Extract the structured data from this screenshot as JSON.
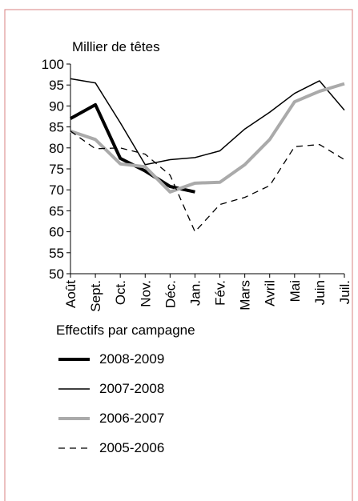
{
  "chart_data": {
    "type": "line",
    "ylabel": "Millier de têtes",
    "categories": [
      "Août",
      "Sept.",
      "Oct.",
      "Nov.",
      "Déc.",
      "Jan.",
      "Fév.",
      "Mars",
      "Avril",
      "Mai",
      "Juin",
      "Juil."
    ],
    "ylim": [
      50,
      100
    ],
    "yticks": [
      50,
      55,
      60,
      65,
      70,
      75,
      80,
      85,
      90,
      95,
      100
    ],
    "legend_title": "Effectifs par campagne",
    "series": [
      {
        "name": "2008-2009",
        "color": "#000000",
        "line_width": 4,
        "dashed": false,
        "values": [
          87,
          90.3,
          77.5,
          74.5,
          70.8,
          69.5,
          null,
          null,
          null,
          null,
          null,
          null
        ]
      },
      {
        "name": "2007-2008",
        "color": "#000000",
        "line_width": 1.5,
        "dashed": false,
        "values": [
          96.5,
          95.5,
          86,
          76,
          77.2,
          77.7,
          79.3,
          84.5,
          88.5,
          93,
          96,
          89
        ]
      },
      {
        "name": "2006-2007",
        "color": "#aaaaaa",
        "line_width": 4,
        "dashed": false,
        "values": [
          84,
          82,
          76.2,
          75.5,
          69.5,
          71.6,
          71.8,
          76,
          82,
          91,
          93.5,
          95.3
        ]
      },
      {
        "name": "2005-2006",
        "color": "#000000",
        "line_width": 1.3,
        "dashed": true,
        "values": [
          84,
          79.8,
          80,
          78.5,
          73.5,
          60,
          66.5,
          68.2,
          71,
          80.3,
          80.8,
          77.2
        ]
      }
    ]
  }
}
